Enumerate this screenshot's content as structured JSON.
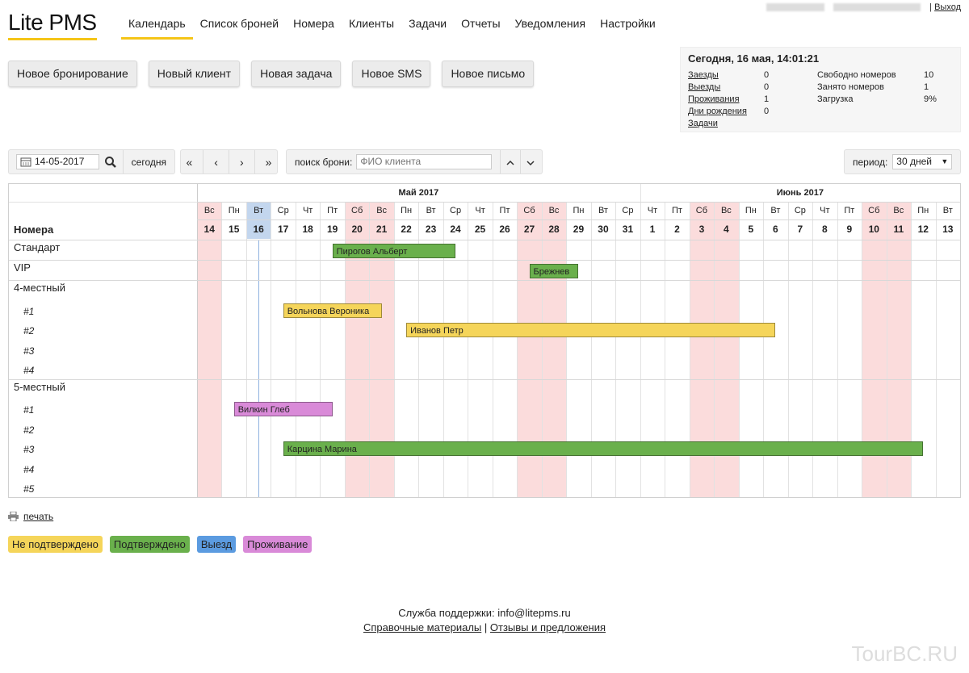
{
  "app_title": "Lite PMS",
  "nav": [
    "Календарь",
    "Список броней",
    "Номера",
    "Клиенты",
    "Задачи",
    "Отчеты",
    "Уведомления",
    "Настройки"
  ],
  "logout_label": "Выход",
  "actions": [
    "Новое бронирование",
    "Новый клиент",
    "Новая задача",
    "Новое SMS",
    "Новое письмо"
  ],
  "info": {
    "today": "Сегодня, 16 мая, 14:01:21",
    "left": [
      {
        "label": "Заезды",
        "value": "0"
      },
      {
        "label": "Выезды",
        "value": "0"
      },
      {
        "label": "Проживания",
        "value": "1"
      },
      {
        "label": "Дни рождения",
        "value": "0"
      },
      {
        "label": "Задачи",
        "value": ""
      }
    ],
    "right": [
      {
        "label": "Свободно номеров",
        "value": "10"
      },
      {
        "label": "Занято номеров",
        "value": "1"
      },
      {
        "label": "Загрузка",
        "value": "9%"
      }
    ]
  },
  "toolbar": {
    "date": "14-05-2017",
    "today_label": "сегодня",
    "search_label": "поиск брони:",
    "search_placeholder": "ФИО клиента",
    "period_label": "период:",
    "period_value": "30 дней"
  },
  "calendar": {
    "months": [
      {
        "name": "Май 2017",
        "start": 0,
        "count": 18
      },
      {
        "name": "Июнь 2017",
        "start": 18,
        "count": 13
      }
    ],
    "days": [
      {
        "n": "14",
        "w": "Вс",
        "we": true
      },
      {
        "n": "15",
        "w": "Пн",
        "we": false
      },
      {
        "n": "16",
        "w": "Вт",
        "we": false,
        "today": true
      },
      {
        "n": "17",
        "w": "Ср",
        "we": false
      },
      {
        "n": "18",
        "w": "Чт",
        "we": false
      },
      {
        "n": "19",
        "w": "Пт",
        "we": false
      },
      {
        "n": "20",
        "w": "Сб",
        "we": true
      },
      {
        "n": "21",
        "w": "Вс",
        "we": true
      },
      {
        "n": "22",
        "w": "Пн",
        "we": false
      },
      {
        "n": "23",
        "w": "Вт",
        "we": false
      },
      {
        "n": "24",
        "w": "Ср",
        "we": false
      },
      {
        "n": "25",
        "w": "Чт",
        "we": false
      },
      {
        "n": "26",
        "w": "Пт",
        "we": false
      },
      {
        "n": "27",
        "w": "Сб",
        "we": true
      },
      {
        "n": "28",
        "w": "Вс",
        "we": true
      },
      {
        "n": "29",
        "w": "Пн",
        "we": false
      },
      {
        "n": "30",
        "w": "Вт",
        "we": false
      },
      {
        "n": "31",
        "w": "Ср",
        "we": false
      },
      {
        "n": "1",
        "w": "Чт",
        "we": false
      },
      {
        "n": "2",
        "w": "Пт",
        "we": false
      },
      {
        "n": "3",
        "w": "Сб",
        "we": true
      },
      {
        "n": "4",
        "w": "Вс",
        "we": true
      },
      {
        "n": "5",
        "w": "Пн",
        "we": false
      },
      {
        "n": "6",
        "w": "Вт",
        "we": false
      },
      {
        "n": "7",
        "w": "Ср",
        "we": false
      },
      {
        "n": "8",
        "w": "Чт",
        "we": false
      },
      {
        "n": "9",
        "w": "Пт",
        "we": false
      },
      {
        "n": "10",
        "w": "Сб",
        "we": true
      },
      {
        "n": "11",
        "w": "Вс",
        "we": true
      },
      {
        "n": "12",
        "w": "Пн",
        "we": false
      },
      {
        "n": "13",
        "w": "Вт",
        "we": false
      }
    ],
    "rooms_header": "Номера",
    "rows": [
      {
        "label": "Стандарт",
        "level": 0
      },
      {
        "label": "VIP",
        "level": 0
      },
      {
        "label": "4-местный",
        "level": 0
      },
      {
        "label": "#1",
        "level": 1
      },
      {
        "label": "#2",
        "level": 1
      },
      {
        "label": "#3",
        "level": 1
      },
      {
        "label": "#4",
        "level": 1
      },
      {
        "label": "5-местный",
        "level": 0
      },
      {
        "label": "#1",
        "level": 1
      },
      {
        "label": "#2",
        "level": 1
      },
      {
        "label": "#3",
        "level": 1
      },
      {
        "label": "#4",
        "level": 1
      },
      {
        "label": "#5",
        "level": 1
      }
    ],
    "bookings": [
      {
        "name": "Пирогов Альберт",
        "row": 0,
        "from": 5.5,
        "to": 10.5,
        "status": "confirmed"
      },
      {
        "name": "Брежнев",
        "row": 1,
        "from": 13.5,
        "to": 15.5,
        "status": "confirmed"
      },
      {
        "name": "Вольнова Вероника",
        "row": 3,
        "from": 3.5,
        "to": 7.5,
        "status": "unconfirmed"
      },
      {
        "name": "Иванов Петр",
        "row": 4,
        "from": 8.5,
        "to": 23.5,
        "status": "unconfirmed"
      },
      {
        "name": "Вилкин Глеб",
        "row": 8,
        "from": 1.5,
        "to": 5.5,
        "status": "staying"
      },
      {
        "name": "Карцина Марина",
        "row": 10,
        "from": 3.5,
        "to": 29.5,
        "status": "confirmed"
      }
    ]
  },
  "print_label": "печать",
  "legend": [
    {
      "label": "Не подтверждено",
      "status": "unconfirmed"
    },
    {
      "label": "Подтверждено",
      "status": "confirmed"
    },
    {
      "label": "Выезд",
      "status": "checkout"
    },
    {
      "label": "Проживание",
      "status": "staying"
    }
  ],
  "colors": {
    "unconfirmed": "#f5d55a",
    "confirmed": "#6ab04c",
    "checkout": "#5b9be0",
    "staying": "#d98ad8",
    "weekend": "#fbdcdc",
    "today": "#c3d6ee",
    "accent": "#f5c518"
  },
  "footer": {
    "support": "Служба поддержки: info@litepms.ru",
    "link1": "Справочные материалы",
    "sep": "|",
    "link2": "Отзывы и предложения"
  },
  "watermark": "TourBC.RU"
}
